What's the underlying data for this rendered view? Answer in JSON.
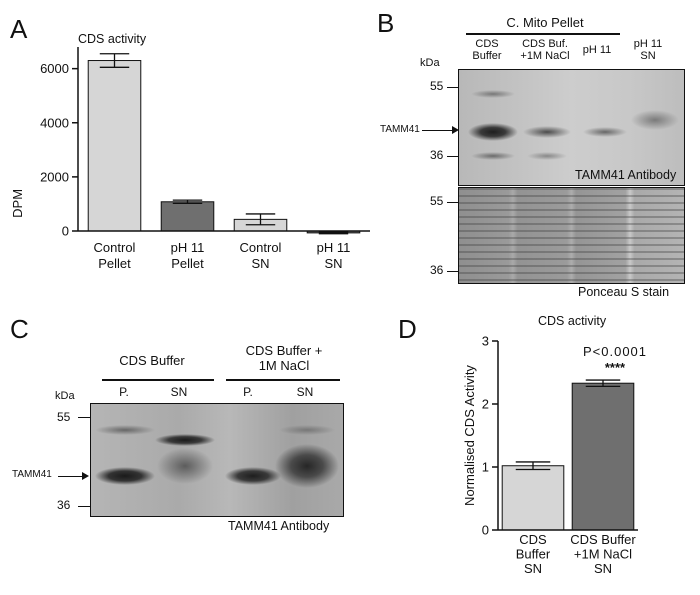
{
  "panels": {
    "A": {
      "letter": "A",
      "title": "CDS activity",
      "chart_data": {
        "type": "bar",
        "title": "CDS activity",
        "ylabel": "DPM",
        "xlabel": "",
        "ylim": [
          0,
          6800
        ],
        "yticks": [
          0,
          2000,
          4000,
          6000
        ],
        "categories": [
          [
            "Control",
            "Pellet"
          ],
          [
            "pH 11",
            "Pellet"
          ],
          [
            "Control",
            "SN"
          ],
          [
            "pH 11",
            "SN"
          ]
        ],
        "values": [
          6300,
          1080,
          430,
          -70
        ],
        "errors": [
          250,
          60,
          200,
          30
        ],
        "colors": [
          "#d6d6d6",
          "#6f6f6f",
          "#d6d6d6",
          "#6f6f6f"
        ]
      }
    },
    "B": {
      "letter": "B",
      "group_header": "C. Mito Pellet",
      "lanes": [
        [
          "CDS",
          "Buffer"
        ],
        [
          "CDS Buf.",
          "+1M NaCl"
        ],
        [
          "pH 11"
        ],
        [
          "pH 11",
          "SN"
        ]
      ],
      "kda_label": "kDa",
      "marker_55": "55",
      "marker_36": "36",
      "band_label": "TAMM41",
      "antibody_label": "TAMM41 Antibody",
      "stain_label": "Ponceau S stain"
    },
    "C": {
      "letter": "C",
      "group1": "CDS Buffer",
      "group2": [
        "CDS Buffer +",
        "1M NaCl"
      ],
      "lanes": [
        "P.",
        "SN",
        "P.",
        "SN"
      ],
      "kda_label": "kDa",
      "marker_55": "55",
      "marker_36": "36",
      "band_label": "TAMM41",
      "antibody_label": "TAMM41 Antibody"
    },
    "D": {
      "letter": "D",
      "title": "CDS activity",
      "pvalue": "P<0.0001",
      "stars": "****",
      "chart_data": {
        "type": "bar",
        "title": "CDS activity",
        "ylabel": "Normalised CDS Activity",
        "xlabel": "",
        "ylim": [
          0,
          3
        ],
        "yticks": [
          0,
          1,
          2,
          3
        ],
        "categories": [
          [
            "CDS",
            "Buffer",
            "SN"
          ],
          [
            "CDS Buffer",
            "+1M NaCl",
            "SN"
          ]
        ],
        "values": [
          1.02,
          2.33
        ],
        "errors": [
          0.06,
          0.05
        ],
        "colors": [
          "#d6d6d6",
          "#6f6f6f"
        ]
      }
    }
  }
}
